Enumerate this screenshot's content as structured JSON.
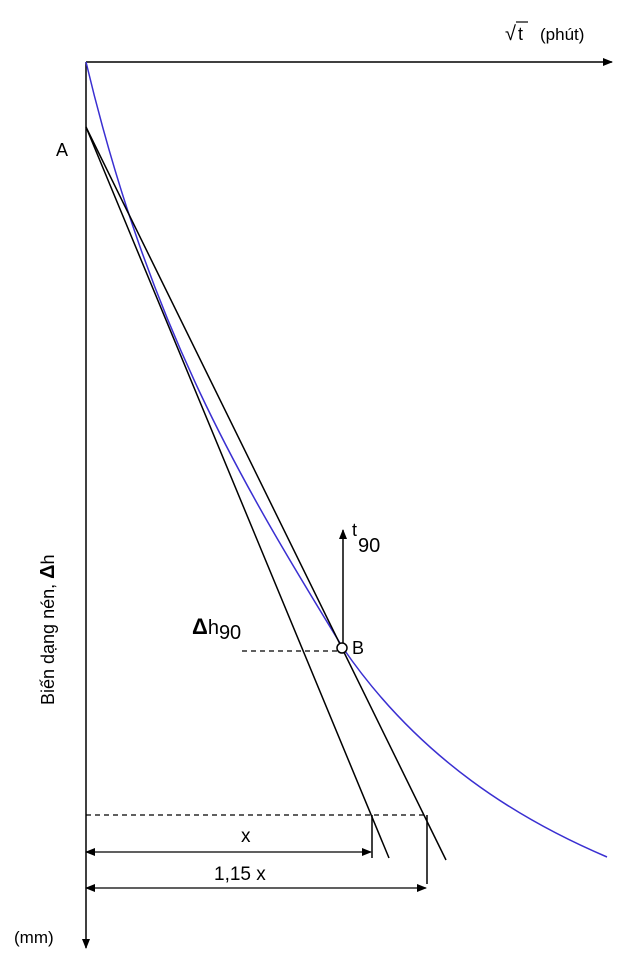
{
  "diagram": {
    "x_axis_label": {
      "root_symbol": "√",
      "variable": "t",
      "unit": "(phút)"
    },
    "y_axis_label": {
      "text": "Biến dạng nén, ",
      "symbol": "Δ",
      "variable": "h"
    },
    "y_unit": "(mm)",
    "point_a": "A",
    "point_b": "B",
    "t90_label": {
      "base": "t",
      "subscript": "90"
    },
    "dh90_label": {
      "symbol": "Δ",
      "base": "h",
      "subscript": "90"
    },
    "x_dimension": "x",
    "x115_dimension": "1,15 x",
    "colors": {
      "curve": "#3a2fd1",
      "lines": "#000000",
      "background": "#ffffff"
    }
  }
}
